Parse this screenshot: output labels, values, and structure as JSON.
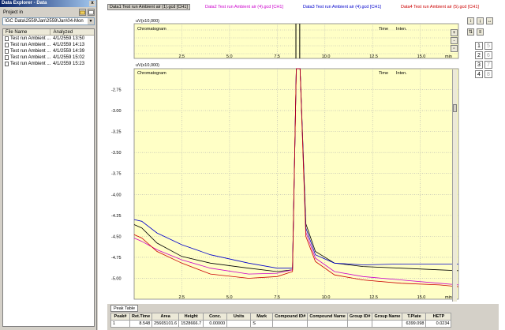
{
  "explorer": {
    "title": "Data Explorer - Data",
    "close": "x",
    "project_label": "Project in",
    "path": "\\GC Data\\2559\\Jan\\2559\\Jan\\04-Mon",
    "columns": [
      "File Name",
      "Analyzed"
    ],
    "files": [
      {
        "name": "Test run Ambient ...",
        "date": "4/1/2559 13:50"
      },
      {
        "name": "Test run Ambient ...",
        "date": "4/1/2559 14:13"
      },
      {
        "name": "Test run Ambient ...",
        "date": "4/1/2559 14:39"
      },
      {
        "name": "Test run Ambient ...",
        "date": "4/1/2559 15:02"
      },
      {
        "name": "Test run Ambient ...",
        "date": "4/1/2559 15:23"
      }
    ]
  },
  "tabs": [
    {
      "label": "Data1 Test run Ambient air (1).gcd [CH1]",
      "color": "#000000"
    },
    {
      "label": "Data2 Test run Ambient air (4).gcd [CH1]",
      "color": "#cc00cc"
    },
    {
      "label": "Data3 Test run Ambient air (4).gcd [CH1]",
      "color": "#0000cc"
    },
    {
      "label": "Data4 Test run Ambient air (5).gcd [CH1]",
      "color": "#cc0000"
    }
  ],
  "top_chart": {
    "unit": "uV(x10,000)",
    "label": "Chromatogram",
    "time_label": "Time",
    "inten_label": "Inten.",
    "x_ticks": [
      "2.5",
      "5.0",
      "7.5",
      "10.0",
      "12.5",
      "15.0"
    ],
    "x_unit": "min"
  },
  "chart_data": {
    "type": "line",
    "title": "Chromatogram",
    "ylabel": "uV(x10,000)",
    "xlabel": "min",
    "xlim": [
      0,
      17
    ],
    "ylim": [
      -5.25,
      -2.5
    ],
    "y_ticks": [
      "-2.75",
      "-3.00",
      "-3.25",
      "-3.50",
      "-3.75",
      "-4.00",
      "-4.25",
      "-4.50",
      "-4.75",
      "-5.00"
    ],
    "x_ticks": [
      "2.5",
      "5.0",
      "7.5",
      "10.0",
      "12.5",
      "15.0"
    ],
    "time_label": "Time",
    "inten_label": "Inten.",
    "series": [
      {
        "color": "#000000",
        "x": [
          0,
          0.4,
          1.2,
          2.5,
          4,
          6,
          7.5,
          8.3,
          8.5,
          8.7,
          9.0,
          9.5,
          10.5,
          12,
          14,
          16,
          17
        ],
        "y": [
          -4.36,
          -4.4,
          -4.58,
          -4.74,
          -4.82,
          -4.88,
          -4.92,
          -4.9,
          -2.5,
          -2.5,
          -4.35,
          -4.68,
          -4.82,
          -4.86,
          -4.88,
          -4.9,
          -4.91
        ]
      },
      {
        "color": "#cc00cc",
        "x": [
          0,
          0.4,
          1.2,
          2.5,
          4,
          6,
          7.5,
          8.3,
          8.5,
          8.7,
          9.0,
          9.5,
          10.5,
          12,
          14,
          16,
          17
        ],
        "y": [
          -4.52,
          -4.56,
          -4.66,
          -4.78,
          -4.88,
          -4.95,
          -4.94,
          -4.9,
          -2.5,
          -2.5,
          -4.45,
          -4.76,
          -4.92,
          -4.98,
          -5.02,
          -5.06,
          -5.08
        ]
      },
      {
        "color": "#0000cc",
        "x": [
          0,
          0.4,
          1.2,
          2.5,
          4,
          6,
          7.5,
          8.3,
          8.5,
          8.7,
          9.0,
          9.5,
          10.5,
          12,
          14,
          16,
          17
        ],
        "y": [
          -4.3,
          -4.32,
          -4.46,
          -4.6,
          -4.72,
          -4.82,
          -4.88,
          -4.88,
          -2.5,
          -2.5,
          -4.4,
          -4.72,
          -4.82,
          -4.84,
          -4.83,
          -4.83,
          -4.83
        ]
      },
      {
        "color": "#cc0000",
        "x": [
          0,
          0.4,
          1.2,
          2.5,
          4,
          6,
          7.5,
          8.3,
          8.5,
          8.7,
          9.0,
          9.5,
          10.5,
          12,
          14,
          16,
          17
        ],
        "y": [
          -4.48,
          -4.52,
          -4.68,
          -4.82,
          -4.95,
          -5.0,
          -4.98,
          -4.92,
          -2.5,
          -2.5,
          -4.5,
          -4.8,
          -4.96,
          -5.02,
          -5.06,
          -5.08,
          -5.1
        ]
      }
    ]
  },
  "side_buttons": [
    "1",
    "5",
    "2",
    "6",
    "3",
    "7",
    "4",
    "8"
  ],
  "peak_table": {
    "tab_label": "Peak Table",
    "columns": [
      "Peak#",
      "Ret.Time",
      "Area",
      "Height",
      "Conc.",
      "Units",
      "Mark",
      "Compound ID#",
      "Compound Name",
      "Group ID#",
      "Group Name",
      "T.Plate",
      "HETP"
    ],
    "rows": [
      [
        "1",
        "8.548",
        "25665101.6",
        "1528666.7",
        "0.00000",
        "",
        "S",
        "",
        "",
        "",
        "",
        "6399.098",
        "0.0234"
      ]
    ]
  }
}
